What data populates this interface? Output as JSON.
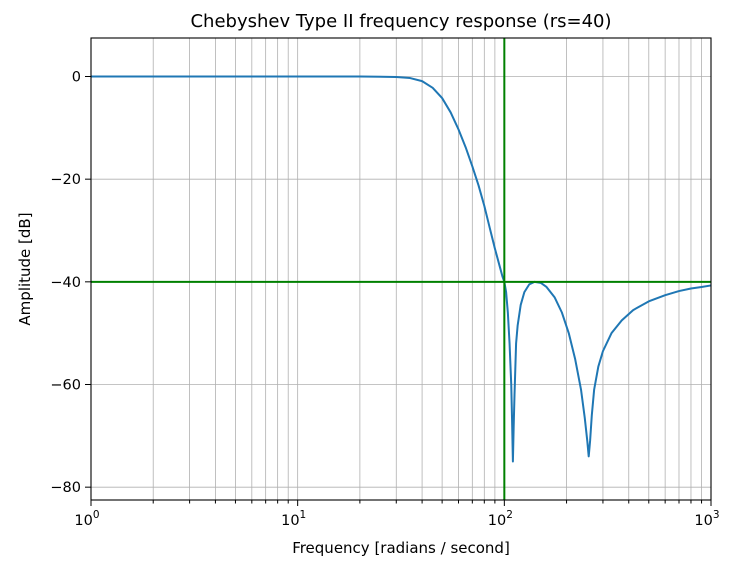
{
  "chart_data": {
    "type": "line",
    "title": "Chebyshev Type II frequency response (rs=40)",
    "xlabel": "Frequency [radians / second]",
    "ylabel": "Amplitude [dB]",
    "xscale": "log",
    "xlim": [
      1,
      1000
    ],
    "ylim": [
      -82.5,
      7.5
    ],
    "grid": "both (major and minor)",
    "x_ticks": [
      {
        "base": "10",
        "exp": "0",
        "value": 1
      },
      {
        "base": "10",
        "exp": "1",
        "value": 10
      },
      {
        "base": "10",
        "exp": "2",
        "value": 100
      },
      {
        "base": "10",
        "exp": "3",
        "value": 1000
      }
    ],
    "y_ticks": [
      {
        "label": "0",
        "value": 0
      },
      {
        "label": "−20",
        "value": -20
      },
      {
        "label": "−40",
        "value": -40
      },
      {
        "label": "−60",
        "value": -60
      },
      {
        "label": "−80",
        "value": -80
      }
    ],
    "series": [
      {
        "name": "response",
        "color": "#1f77b4",
        "points": [
          [
            1,
            0
          ],
          [
            5,
            0
          ],
          [
            10,
            0
          ],
          [
            20,
            0
          ],
          [
            30,
            -0.1
          ],
          [
            35,
            -0.3
          ],
          [
            40,
            -0.9
          ],
          [
            45,
            -2.2
          ],
          [
            50,
            -4.2
          ],
          [
            55,
            -7.0
          ],
          [
            60,
            -10.3
          ],
          [
            65,
            -13.8
          ],
          [
            70,
            -17.5
          ],
          [
            75,
            -21.2
          ],
          [
            80,
            -25.2
          ],
          [
            85,
            -29.5
          ],
          [
            90,
            -33.5
          ],
          [
            95,
            -37.0
          ],
          [
            98,
            -39.0
          ],
          [
            100,
            -40.0
          ],
          [
            102,
            -42.0
          ],
          [
            104,
            -46.0
          ],
          [
            106,
            -52.0
          ],
          [
            108,
            -60.0
          ],
          [
            109,
            -67.0
          ],
          [
            110,
            -75.0
          ],
          [
            111,
            -68.0
          ],
          [
            112,
            -62.0
          ],
          [
            113,
            -57.0
          ],
          [
            114,
            -52.0
          ],
          [
            116,
            -48.5
          ],
          [
            120,
            -44.5
          ],
          [
            125,
            -42.0
          ],
          [
            132,
            -40.5
          ],
          [
            140,
            -40.0
          ],
          [
            150,
            -40.2
          ],
          [
            160,
            -41.0
          ],
          [
            175,
            -43.0
          ],
          [
            190,
            -46.0
          ],
          [
            205,
            -50.0
          ],
          [
            220,
            -55.0
          ],
          [
            235,
            -61.0
          ],
          [
            245,
            -66.5
          ],
          [
            252,
            -71.0
          ],
          [
            256,
            -74.0
          ],
          [
            260,
            -71.0
          ],
          [
            265,
            -66.0
          ],
          [
            272,
            -61.0
          ],
          [
            285,
            -56.5
          ],
          [
            300,
            -53.5
          ],
          [
            330,
            -50.0
          ],
          [
            370,
            -47.5
          ],
          [
            420,
            -45.5
          ],
          [
            500,
            -43.8
          ],
          [
            600,
            -42.6
          ],
          [
            700,
            -41.8
          ],
          [
            800,
            -41.3
          ],
          [
            900,
            -41.0
          ],
          [
            1000,
            -40.7
          ]
        ]
      }
    ],
    "reference_lines": [
      {
        "orientation": "vertical",
        "x": 100,
        "color": "#008000"
      },
      {
        "orientation": "horizontal",
        "y": -40,
        "color": "#008000"
      }
    ]
  }
}
